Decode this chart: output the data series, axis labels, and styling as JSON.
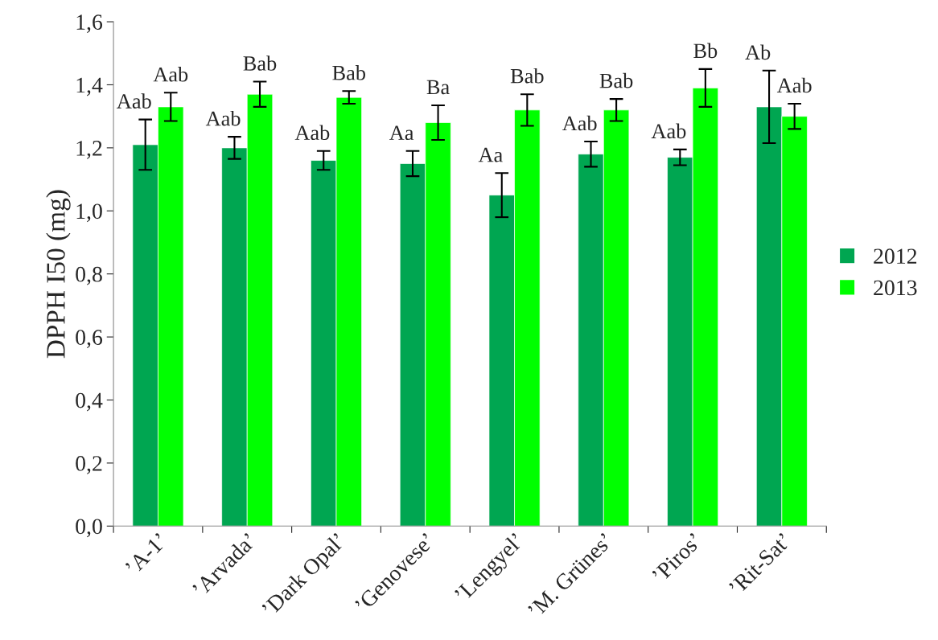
{
  "chart_data": {
    "type": "bar",
    "ylabel": "DPPH I50 (mg)",
    "categories": [
      "’A-1’",
      "’Arvada’",
      "’Dark Opal’",
      "’Genovese’",
      "’Lengyel’",
      "’M. Grünes’",
      "’Piros’",
      "’Rit-Sat’"
    ],
    "series": [
      {
        "name": "2012",
        "color": "#00a651",
        "values": [
          1.21,
          1.2,
          1.16,
          1.15,
          1.05,
          1.18,
          1.17,
          1.33
        ],
        "errors": [
          0.08,
          0.035,
          0.03,
          0.04,
          0.07,
          0.04,
          0.025,
          0.115
        ],
        "value_labels": [
          "Aab",
          "Aab",
          "Aab",
          "Aa",
          "Aa",
          "Aab",
          "Aab",
          "Ab"
        ]
      },
      {
        "name": "2013",
        "color": "#00ff00",
        "values": [
          1.33,
          1.37,
          1.36,
          1.28,
          1.32,
          1.32,
          1.39,
          1.3
        ],
        "errors": [
          0.045,
          0.04,
          0.02,
          0.055,
          0.05,
          0.035,
          0.06,
          0.04
        ],
        "value_labels": [
          "Aab",
          "Bab",
          "Bab",
          "Ba",
          "Bab",
          "Bab",
          "Bb",
          "Aab"
        ]
      }
    ],
    "ylim": [
      0,
      1.6
    ],
    "yticks": [
      {
        "value": 0,
        "label": "0,0"
      },
      {
        "value": 0.2,
        "label": "0,2"
      },
      {
        "value": 0.4,
        "label": "0,4"
      },
      {
        "value": 0.6,
        "label": "0,6"
      },
      {
        "value": 0.8,
        "label": "0,8"
      },
      {
        "value": 1.0,
        "label": "1,0"
      },
      {
        "value": 1.2,
        "label": "1,2"
      },
      {
        "value": 1.4,
        "label": "1,4"
      },
      {
        "value": 1.6,
        "label": "1,6"
      }
    ],
    "legend": "right",
    "grid": false
  }
}
